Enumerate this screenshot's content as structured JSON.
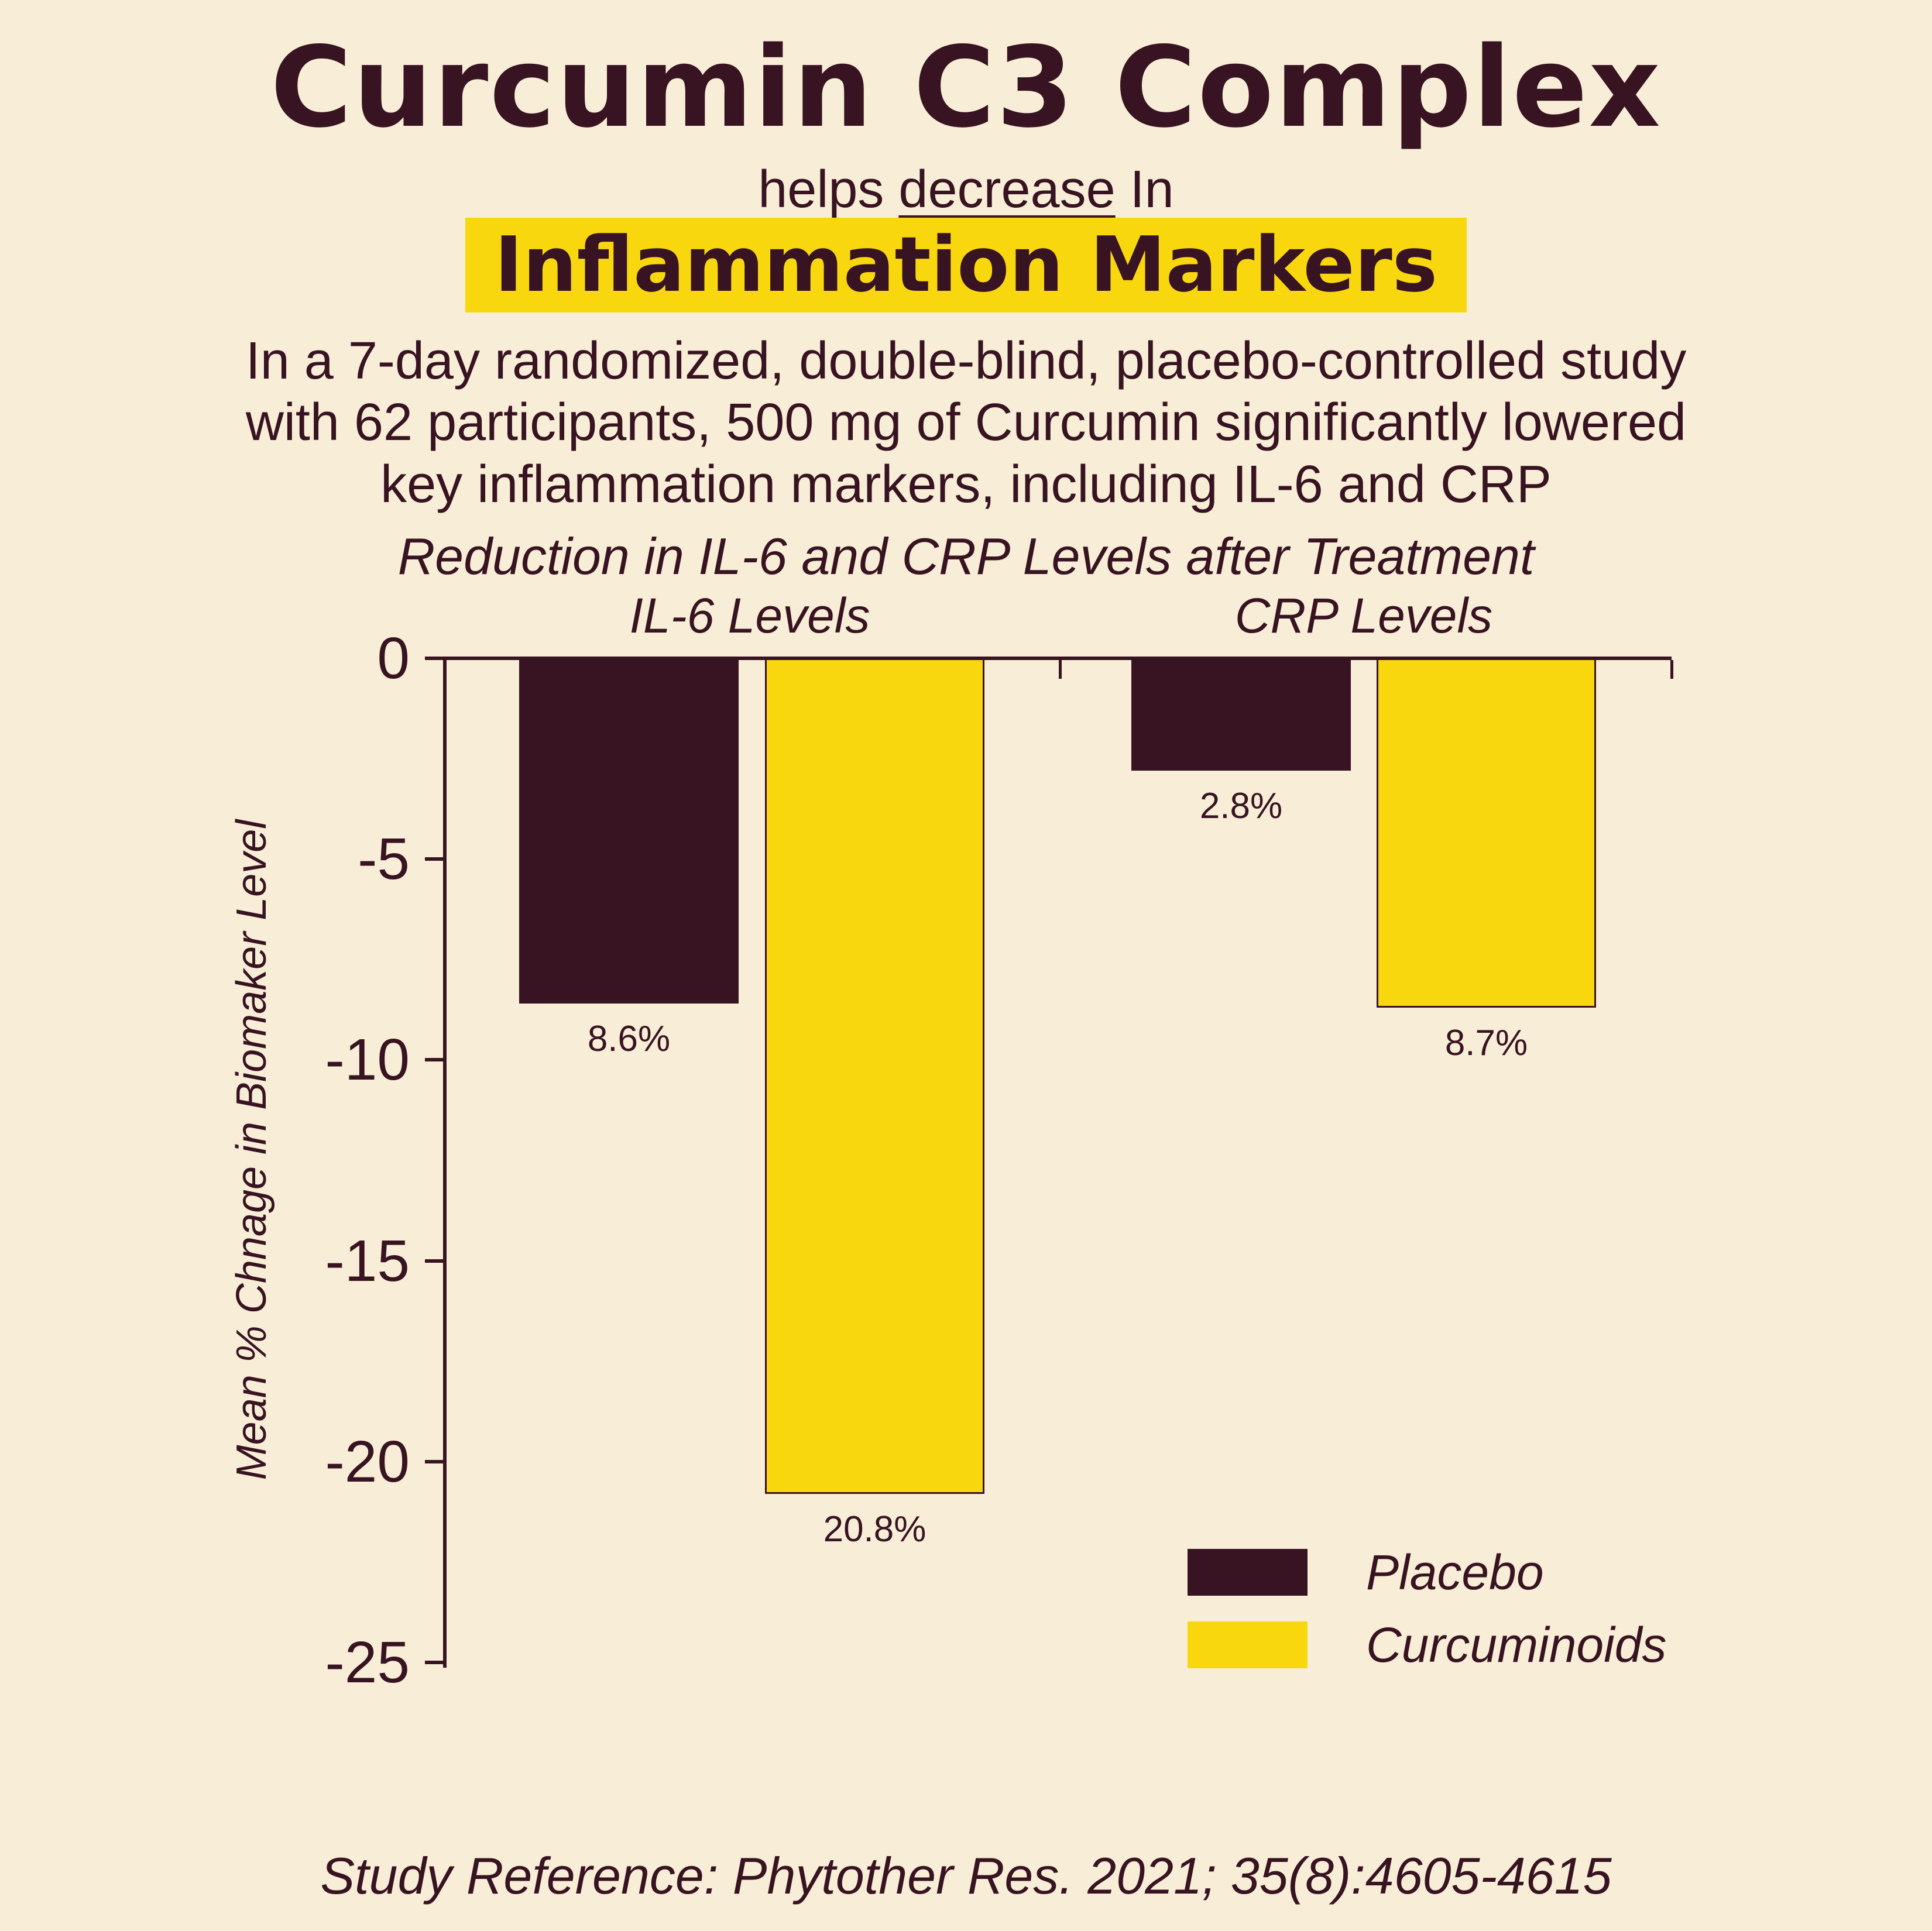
{
  "header": {
    "title": "Curcumin C3 Complex",
    "subtitle_prefix": "helps ",
    "subtitle_underline": "decrease",
    "subtitle_suffix": " In",
    "highlight": "Inflammation Markers",
    "description": "In a 7-day randomized, double-blind, placebo-controlled study\nwith 62 participants, 500 mg of Curcumin significantly lowered\nkey inflammation markers, including IL-6 and CRP"
  },
  "colors": {
    "background": "#f8eed8",
    "text_dark": "#381321",
    "accent_yellow": "#f8d70f"
  },
  "chart_data": {
    "type": "bar",
    "title": "Reduction in IL-6 and CRP Levels after Treatment",
    "ylabel": "Mean % Chnage in Biomaker Level",
    "ylim": [
      -26,
      0
    ],
    "yticks": [
      0,
      -5,
      -10,
      -15,
      -20,
      -25
    ],
    "grid": false,
    "legend_position": "lower right",
    "groups": [
      "IL-6 Levels",
      "CRP Levels"
    ],
    "series": [
      {
        "name": "Placebo",
        "color": "#381321",
        "values": [
          -8.6,
          -2.8
        ],
        "labels": [
          "8.6%",
          "2.8%"
        ]
      },
      {
        "name": "Curcuminoids",
        "color": "#f8d70f",
        "values": [
          -20.8,
          -8.7
        ],
        "labels": [
          "20.8%",
          "8.7%"
        ]
      }
    ],
    "legend": [
      {
        "label": "Placebo",
        "color": "#381321"
      },
      {
        "label": "Curcuminoids",
        "color": "#f8d70f"
      }
    ]
  },
  "footer": {
    "reference": "Study Reference: Phytother Res. 2021; 35(8):4605-4615"
  }
}
